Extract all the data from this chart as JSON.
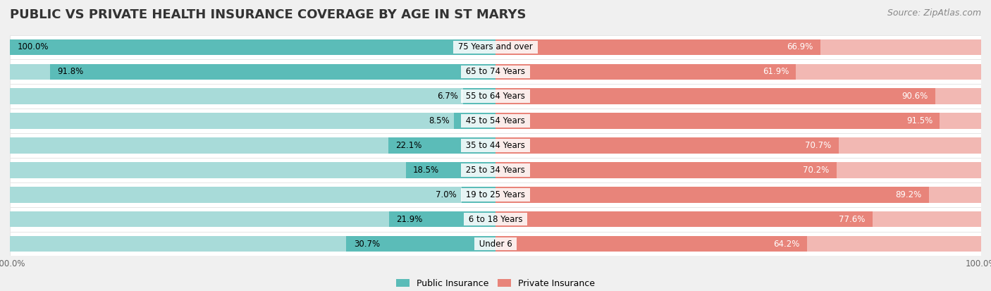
{
  "title": "PUBLIC VS PRIVATE HEALTH INSURANCE COVERAGE BY AGE IN ST MARYS",
  "source": "Source: ZipAtlas.com",
  "categories": [
    "Under 6",
    "6 to 18 Years",
    "19 to 25 Years",
    "25 to 34 Years",
    "35 to 44 Years",
    "45 to 54 Years",
    "55 to 64 Years",
    "65 to 74 Years",
    "75 Years and over"
  ],
  "public_values": [
    30.7,
    21.9,
    7.0,
    18.5,
    22.1,
    8.5,
    6.7,
    91.8,
    100.0
  ],
  "private_values": [
    64.2,
    77.6,
    89.2,
    70.2,
    70.7,
    91.5,
    90.6,
    61.9,
    66.9
  ],
  "public_color": "#5bbcb8",
  "private_color": "#e8847a",
  "public_color_light": "#a8dbd9",
  "private_color_light": "#f2b8b3",
  "bg_color": "#f0f0f0",
  "row_bg_color": "#fafafa",
  "max_value": 100.0,
  "legend_public": "Public Insurance",
  "legend_private": "Private Insurance",
  "title_fontsize": 13,
  "source_fontsize": 9,
  "label_fontsize": 8.5,
  "category_fontsize": 8.5
}
